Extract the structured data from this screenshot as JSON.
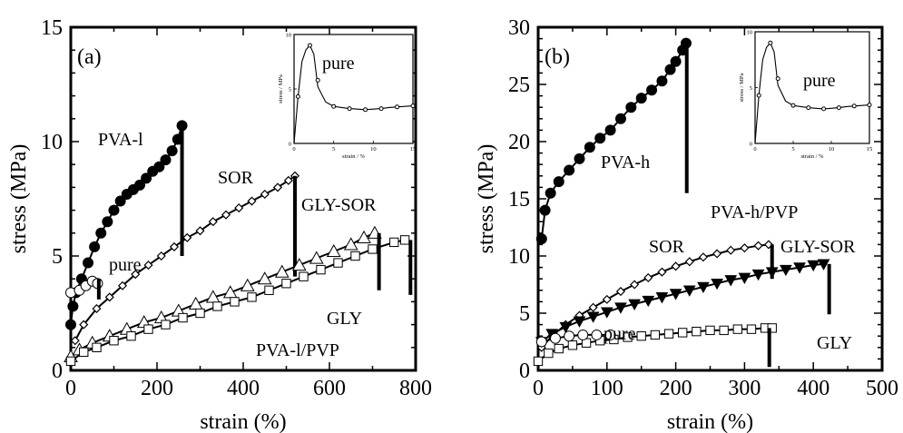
{
  "chart_data": [
    {
      "id": "a",
      "type": "line",
      "panel_label": "(a)",
      "xlabel": "strain (%)",
      "ylabel": "stress (MPa)",
      "xlim": [
        0,
        800
      ],
      "ylim": [
        0,
        15
      ],
      "xticks": [
        0,
        200,
        400,
        600,
        800
      ],
      "yticks": [
        0,
        5,
        10,
        15
      ],
      "annotations": [
        "PVA-l",
        "SOR",
        "GLY-SOR",
        "pure",
        "GLY",
        "PVA-l/PVP"
      ],
      "series": [
        {
          "name": "PVA-l",
          "marker": "filled-circle",
          "points": [
            [
              0,
              2.0
            ],
            [
              5,
              2.8
            ],
            [
              12,
              3.4
            ],
            [
              25,
              4.0
            ],
            [
              40,
              4.7
            ],
            [
              55,
              5.4
            ],
            [
              70,
              6.0
            ],
            [
              85,
              6.5
            ],
            [
              100,
              7.0
            ],
            [
              115,
              7.4
            ],
            [
              130,
              7.7
            ],
            [
              145,
              7.9
            ],
            [
              160,
              8.1
            ],
            [
              175,
              8.4
            ],
            [
              190,
              8.7
            ],
            [
              205,
              8.9
            ],
            [
              220,
              9.2
            ],
            [
              235,
              9.6
            ],
            [
              248,
              10.1
            ],
            [
              258,
              10.7
            ]
          ],
          "break_x": 258,
          "break_y_range": [
            5.0,
            10.7
          ]
        },
        {
          "name": "SOR",
          "marker": "open-diamond",
          "points": [
            [
              10,
              1.3
            ],
            [
              30,
              2.0
            ],
            [
              60,
              2.7
            ],
            [
              90,
              3.2
            ],
            [
              120,
              3.7
            ],
            [
              150,
              4.2
            ],
            [
              180,
              4.6
            ],
            [
              210,
              5.0
            ],
            [
              240,
              5.4
            ],
            [
              270,
              5.8
            ],
            [
              300,
              6.1
            ],
            [
              330,
              6.5
            ],
            [
              360,
              6.8
            ],
            [
              390,
              7.1
            ],
            [
              420,
              7.4
            ],
            [
              450,
              7.7
            ],
            [
              480,
              8.0
            ],
            [
              505,
              8.3
            ],
            [
              520,
              8.5
            ]
          ],
          "break_x": 520,
          "break_y_range": [
            4.1,
            8.5
          ]
        },
        {
          "name": "GLY-SOR",
          "marker": "open-triangle",
          "points": [
            [
              0,
              0.6
            ],
            [
              20,
              0.9
            ],
            [
              50,
              1.2
            ],
            [
              90,
              1.5
            ],
            [
              130,
              1.8
            ],
            [
              170,
              2.1
            ],
            [
              210,
              2.3
            ],
            [
              250,
              2.6
            ],
            [
              290,
              2.9
            ],
            [
              330,
              3.2
            ],
            [
              370,
              3.4
            ],
            [
              410,
              3.7
            ],
            [
              450,
              4.0
            ],
            [
              490,
              4.3
            ],
            [
              530,
              4.6
            ],
            [
              570,
              4.9
            ],
            [
              610,
              5.2
            ],
            [
              650,
              5.5
            ],
            [
              680,
              5.8
            ],
            [
              705,
              6.0
            ]
          ],
          "break_x": 715,
          "break_y_range": [
            3.5,
            6.0
          ]
        },
        {
          "name": "GLY",
          "marker": "open-square",
          "points": [
            [
              0,
              0.4
            ],
            [
              30,
              0.8
            ],
            [
              60,
              1.0
            ],
            [
              100,
              1.3
            ],
            [
              140,
              1.5
            ],
            [
              180,
              1.8
            ],
            [
              220,
              2.0
            ],
            [
              260,
              2.3
            ],
            [
              300,
              2.5
            ],
            [
              340,
              2.8
            ],
            [
              380,
              3.0
            ],
            [
              420,
              3.2
            ],
            [
              460,
              3.5
            ],
            [
              500,
              3.8
            ],
            [
              540,
              4.1
            ],
            [
              580,
              4.4
            ],
            [
              620,
              4.7
            ],
            [
              660,
              5.0
            ],
            [
              700,
              5.3
            ],
            [
              750,
              5.6
            ],
            [
              775,
              5.7
            ]
          ],
          "break_x": 788,
          "break_y_range": [
            3.3,
            5.7
          ]
        },
        {
          "name": "pure",
          "marker": "open-circle",
          "points": [
            [
              0,
              3.4
            ],
            [
              20,
              3.5
            ],
            [
              35,
              3.7
            ],
            [
              50,
              3.9
            ],
            [
              62,
              3.8
            ]
          ],
          "break_x": 65,
          "break_y_range": [
            3.1,
            4.0
          ]
        }
      ],
      "inset": {
        "annotation": "pure",
        "xlabel": "strain / %",
        "ylabel": "stress / MPa",
        "xlim": [
          0,
          15
        ],
        "ylim": [
          0,
          10
        ],
        "xticks": [
          0,
          5,
          10,
          15
        ],
        "yticks": [
          0,
          5,
          10
        ],
        "points": [
          [
            0,
            0
          ],
          [
            0.5,
            4.3
          ],
          [
            1.0,
            7.5
          ],
          [
            1.5,
            8.6
          ],
          [
            2.0,
            9.0
          ],
          [
            2.5,
            8.2
          ],
          [
            3.0,
            5.2
          ],
          [
            4.0,
            3.8
          ],
          [
            5.0,
            3.4
          ],
          [
            6.0,
            3.3
          ],
          [
            7.0,
            3.2
          ],
          [
            8.0,
            3.15
          ],
          [
            9.0,
            3.1
          ],
          [
            10.0,
            3.15
          ],
          [
            11.0,
            3.2
          ],
          [
            12.0,
            3.3
          ],
          [
            13.0,
            3.35
          ],
          [
            14.0,
            3.4
          ],
          [
            15.0,
            3.45
          ]
        ],
        "markers": [
          [
            0.5,
            4.3
          ],
          [
            2.0,
            9.0
          ],
          [
            3.0,
            5.8
          ],
          [
            5.0,
            3.4
          ],
          [
            7.0,
            3.2
          ],
          [
            9.0,
            3.1
          ],
          [
            11.0,
            3.2
          ],
          [
            13.0,
            3.35
          ],
          [
            15.0,
            3.45
          ]
        ]
      }
    },
    {
      "id": "b",
      "type": "line",
      "panel_label": "(b)",
      "xlabel": "strain (%)",
      "ylabel": "stress (MPa)",
      "xlim": [
        0,
        500
      ],
      "ylim": [
        0,
        30
      ],
      "xticks": [
        0,
        100,
        200,
        300,
        400,
        500
      ],
      "yticks": [
        0,
        5,
        10,
        15,
        20,
        25,
        30
      ],
      "annotations": [
        "PVA-h",
        "PVA-h/PVP",
        "SOR",
        "GLY-SOR",
        "pure",
        "GLY"
      ],
      "series": [
        {
          "name": "PVA-h",
          "marker": "filled-circle",
          "points": [
            [
              5,
              11.5
            ],
            [
              10,
              14.0
            ],
            [
              18,
              15.5
            ],
            [
              30,
              16.5
            ],
            [
              45,
              17.5
            ],
            [
              60,
              18.5
            ],
            [
              75,
              19.5
            ],
            [
              90,
              20.3
            ],
            [
              105,
              21.0
            ],
            [
              120,
              22.0
            ],
            [
              135,
              23.0
            ],
            [
              150,
              23.8
            ],
            [
              165,
              24.5
            ],
            [
              180,
              25.3
            ],
            [
              192,
              26.3
            ],
            [
              200,
              27.0
            ],
            [
              210,
              28.0
            ],
            [
              215,
              28.6
            ]
          ],
          "break_x": 216,
          "break_y_range": [
            15.5,
            28.6
          ]
        },
        {
          "name": "SOR",
          "marker": "open-diamond",
          "points": [
            [
              5,
              2.0
            ],
            [
              20,
              3.0
            ],
            [
              40,
              4.0
            ],
            [
              60,
              4.8
            ],
            [
              80,
              5.5
            ],
            [
              100,
              6.2
            ],
            [
              120,
              6.9
            ],
            [
              140,
              7.5
            ],
            [
              160,
              8.1
            ],
            [
              180,
              8.6
            ],
            [
              200,
              9.1
            ],
            [
              220,
              9.5
            ],
            [
              240,
              9.9
            ],
            [
              260,
              10.2
            ],
            [
              280,
              10.5
            ],
            [
              300,
              10.7
            ],
            [
              320,
              10.9
            ],
            [
              335,
              11.0
            ]
          ],
          "break_x": 340,
          "break_y_range": [
            8.0,
            11.0
          ]
        },
        {
          "name": "GLY-SOR",
          "marker": "filled-triangle-down",
          "points": [
            [
              5,
              2.5
            ],
            [
              20,
              3.2
            ],
            [
              40,
              3.8
            ],
            [
              60,
              4.3
            ],
            [
              80,
              4.7
            ],
            [
              100,
              5.1
            ],
            [
              120,
              5.5
            ],
            [
              140,
              5.8
            ],
            [
              160,
              6.1
            ],
            [
              180,
              6.4
            ],
            [
              200,
              6.7
            ],
            [
              220,
              7.0
            ],
            [
              240,
              7.3
            ],
            [
              260,
              7.6
            ],
            [
              280,
              7.9
            ],
            [
              300,
              8.1
            ],
            [
              320,
              8.4
            ],
            [
              340,
              8.6
            ],
            [
              360,
              8.8
            ],
            [
              380,
              9.0
            ],
            [
              400,
              9.2
            ],
            [
              415,
              9.3
            ]
          ],
          "break_x": 423,
          "break_y_range": [
            4.9,
            9.3
          ]
        },
        {
          "name": "GLY",
          "marker": "open-square",
          "points": [
            [
              0,
              0.8
            ],
            [
              15,
              1.5
            ],
            [
              30,
              1.9
            ],
            [
              50,
              2.2
            ],
            [
              70,
              2.4
            ],
            [
              90,
              2.6
            ],
            [
              110,
              2.7
            ],
            [
              130,
              2.9
            ],
            [
              150,
              3.0
            ],
            [
              170,
              3.1
            ],
            [
              190,
              3.2
            ],
            [
              210,
              3.3
            ],
            [
              230,
              3.4
            ],
            [
              250,
              3.5
            ],
            [
              270,
              3.5
            ],
            [
              290,
              3.6
            ],
            [
              310,
              3.6
            ],
            [
              330,
              3.7
            ],
            [
              340,
              3.7
            ]
          ],
          "break_x": 336,
          "break_y_range": [
            0.3,
            3.7
          ]
        },
        {
          "name": "pure",
          "marker": "open-circle",
          "points": [
            [
              5,
              2.5
            ],
            [
              25,
              2.8
            ],
            [
              45,
              3.0
            ],
            [
              65,
              3.1
            ],
            [
              85,
              3.1
            ],
            [
              105,
              3.1
            ]
          ]
        }
      ],
      "inset": {
        "annotation": "pure",
        "xlabel": "strain / %",
        "ylabel": "stress / MPa",
        "xlim": [
          0,
          15
        ],
        "ylim": [
          0,
          10
        ],
        "xticks": [
          0,
          5,
          10,
          15
        ],
        "yticks": [
          0,
          5,
          10
        ],
        "points": [
          [
            0,
            0
          ],
          [
            0.5,
            4.3
          ],
          [
            1.0,
            7.5
          ],
          [
            1.5,
            8.6
          ],
          [
            2.0,
            9.0
          ],
          [
            2.5,
            8.2
          ],
          [
            3.0,
            5.2
          ],
          [
            4.0,
            3.8
          ],
          [
            5.0,
            3.4
          ],
          [
            6.0,
            3.3
          ],
          [
            7.0,
            3.2
          ],
          [
            8.0,
            3.15
          ],
          [
            9.0,
            3.1
          ],
          [
            10.0,
            3.15
          ],
          [
            11.0,
            3.2
          ],
          [
            12.0,
            3.3
          ],
          [
            13.0,
            3.35
          ],
          [
            14.0,
            3.4
          ],
          [
            15.0,
            3.45
          ]
        ],
        "markers": [
          [
            0.5,
            4.3
          ],
          [
            2.0,
            9.0
          ],
          [
            3.0,
            5.8
          ],
          [
            5.0,
            3.4
          ],
          [
            7.0,
            3.2
          ],
          [
            9.0,
            3.1
          ],
          [
            11.0,
            3.2
          ],
          [
            13.0,
            3.35
          ],
          [
            15.0,
            3.45
          ]
        ]
      }
    }
  ]
}
